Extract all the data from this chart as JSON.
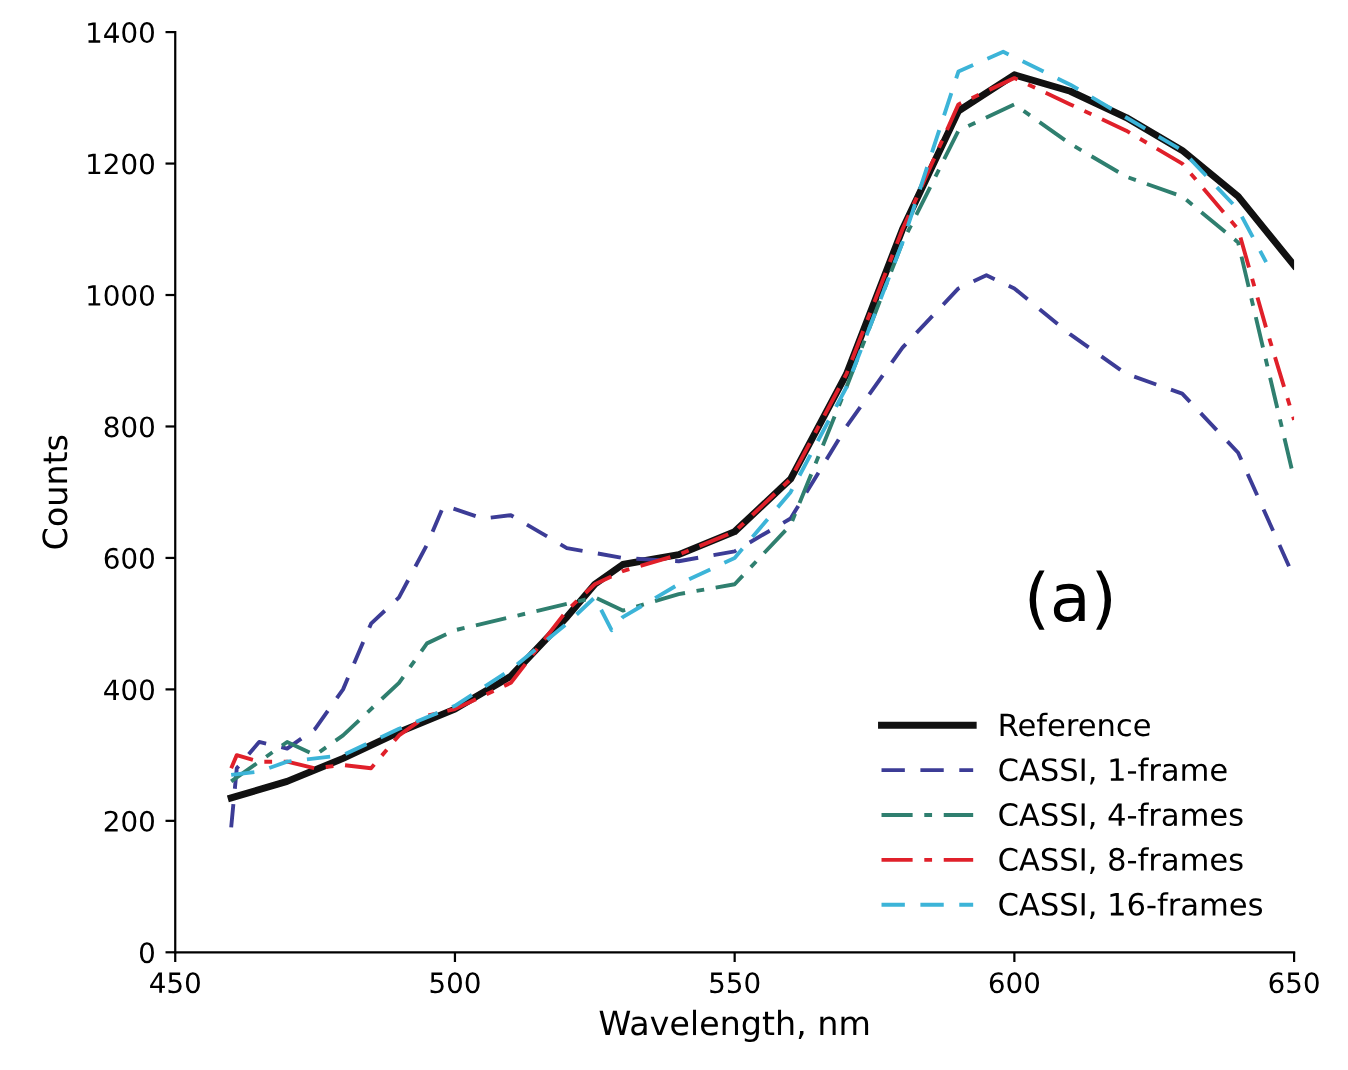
{
  "chart_data": {
    "type": "line",
    "xlabel": "Wavelength, nm",
    "ylabel": "Counts",
    "annotations": [
      "(a)"
    ],
    "xlim": [
      450,
      650
    ],
    "xticks": [
      450,
      500,
      550,
      600,
      650
    ],
    "ylim": [
      0,
      1400
    ],
    "yticks": [
      0,
      200,
      400,
      600,
      800,
      1000,
      1200,
      1400
    ],
    "legend": "bottom right",
    "grid": false,
    "series": [
      {
        "name": "Reference",
        "color": "#111111",
        "line_style": "solid",
        "x": [
          460,
          470,
          480,
          490,
          500,
          510,
          520,
          525,
          530,
          540,
          550,
          560,
          570,
          580,
          590,
          600,
          610,
          620,
          630,
          640,
          650
        ],
        "values": [
          235,
          260,
          295,
          335,
          370,
          420,
          510,
          560,
          590,
          605,
          640,
          720,
          880,
          1100,
          1280,
          1335,
          1310,
          1270,
          1220,
          1150,
          1045
        ]
      },
      {
        "name": "CASSI, 1-frame",
        "color": "#3c3c96",
        "line_style": "dashed",
        "x": [
          460,
          461,
          465,
          470,
          475,
          480,
          485,
          490,
          495,
          498,
          505,
          510,
          515,
          520,
          530,
          540,
          550,
          560,
          570,
          580,
          590,
          595,
          600,
          610,
          620,
          630,
          640,
          650
        ],
        "values": [
          190,
          280,
          320,
          310,
          340,
          400,
          500,
          540,
          620,
          680,
          660,
          665,
          640,
          615,
          600,
          595,
          610,
          660,
          800,
          920,
          1010,
          1030,
          1010,
          940,
          880,
          850,
          760,
          570
        ]
      },
      {
        "name": "CASSI, 4-frames",
        "color": "#2f7f6f",
        "line_style": "dashdot",
        "x": [
          460,
          465,
          470,
          475,
          480,
          490,
          495,
          500,
          510,
          520,
          525,
          530,
          540,
          550,
          560,
          570,
          580,
          590,
          600,
          610,
          620,
          630,
          640,
          645,
          650
        ],
        "values": [
          260,
          290,
          320,
          300,
          330,
          410,
          470,
          490,
          510,
          530,
          540,
          520,
          545,
          560,
          650,
          860,
          1080,
          1250,
          1290,
          1230,
          1180,
          1150,
          1080,
          900,
          720
        ]
      },
      {
        "name": "CASSI, 8-frames",
        "color": "#e0202a",
        "line_style": "dashdot",
        "x": [
          460,
          461,
          465,
          470,
          475,
          480,
          485,
          490,
          495,
          500,
          505,
          510,
          520,
          525,
          530,
          540,
          550,
          560,
          570,
          580,
          590,
          600,
          610,
          620,
          630,
          640,
          645,
          650
        ],
        "values": [
          280,
          300,
          290,
          290,
          280,
          285,
          280,
          330,
          360,
          370,
          390,
          410,
          520,
          560,
          580,
          605,
          640,
          720,
          880,
          1100,
          1290,
          1330,
          1290,
          1250,
          1200,
          1100,
          950,
          810
        ]
      },
      {
        "name": "CASSI, 16-frames",
        "color": "#3cb4d8",
        "line_style": "dashed",
        "x": [
          460,
          465,
          470,
          480,
          490,
          500,
          510,
          520,
          525,
          528,
          530,
          540,
          550,
          560,
          570,
          580,
          590,
          598,
          610,
          620,
          630,
          640,
          645
        ],
        "values": [
          270,
          275,
          290,
          300,
          340,
          375,
          430,
          500,
          540,
          490,
          510,
          560,
          600,
          700,
          860,
          1080,
          1340,
          1370,
          1320,
          1270,
          1220,
          1130,
          1050
        ]
      }
    ]
  }
}
